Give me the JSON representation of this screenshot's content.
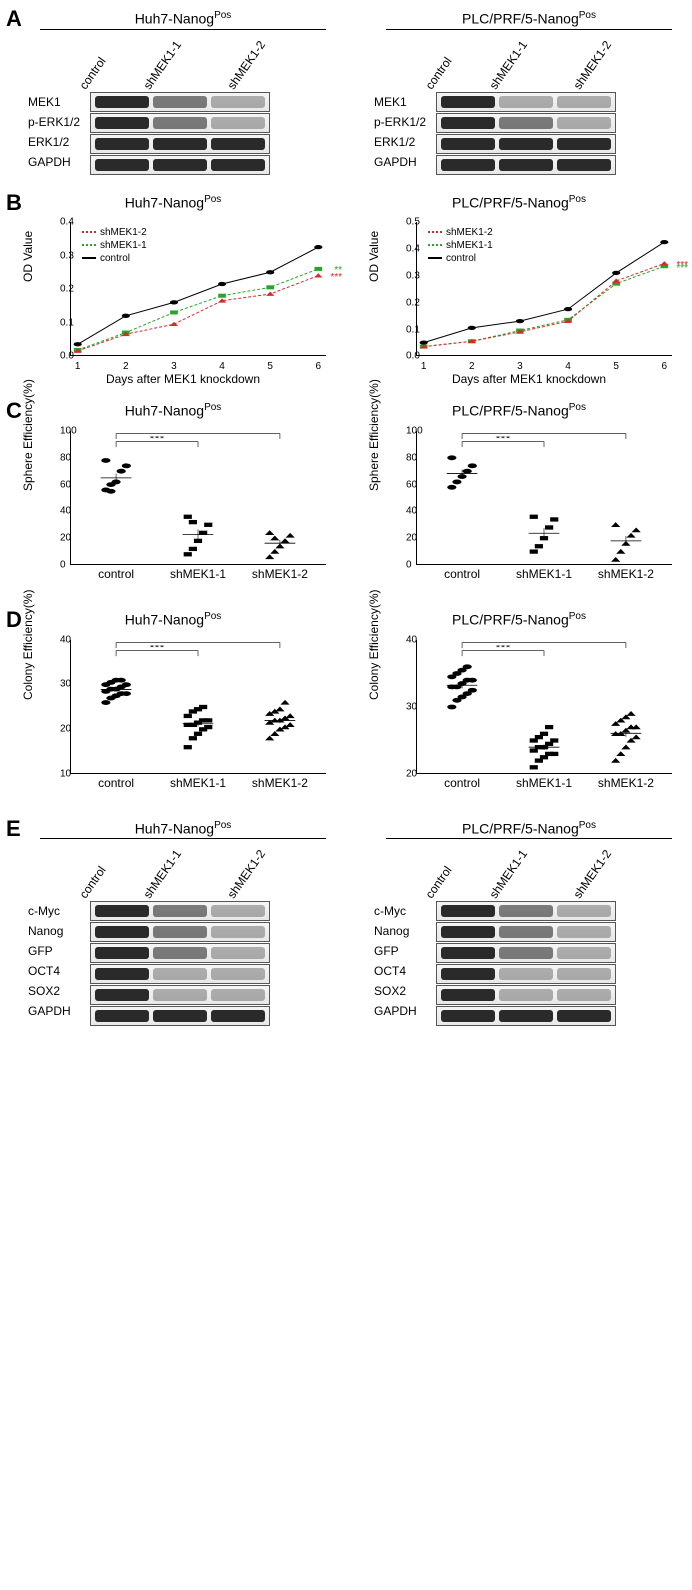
{
  "cellLines": {
    "huh7": "Huh7-Nanog",
    "plc": "PLC/PRF/5-Nanog",
    "sup": "Pos"
  },
  "conditions": [
    "control",
    "shMEK1-1",
    "shMEK1-2"
  ],
  "panelA": {
    "proteins": [
      "MEK1",
      "p-ERK1/2",
      "ERK1/2",
      "GAPDH"
    ],
    "bands_huh7": [
      [
        "strong",
        "med",
        "light"
      ],
      [
        "strong",
        "med",
        "light"
      ],
      [
        "strong",
        "strong",
        "strong"
      ],
      [
        "strong",
        "strong",
        "strong"
      ]
    ],
    "bands_plc": [
      [
        "strong",
        "light",
        "light"
      ],
      [
        "strong",
        "med",
        "light"
      ],
      [
        "strong",
        "strong",
        "strong"
      ],
      [
        "strong",
        "strong",
        "strong"
      ]
    ]
  },
  "panelB": {
    "y_label": "OD Value",
    "x_label": "Days after MEK1 knockdown",
    "legend": [
      {
        "label": "shMEK1-2",
        "color": "#d42a2a",
        "dash": "4,3",
        "marker": "triangle"
      },
      {
        "label": "shMEK1-1",
        "color": "#28a428",
        "dash": "4,3",
        "marker": "square"
      },
      {
        "label": "control",
        "color": "#000000",
        "dash": "",
        "marker": "circle"
      }
    ],
    "x_ticks": [
      1,
      2,
      3,
      4,
      5,
      6
    ],
    "huh7": {
      "ylim": [
        0,
        0.4
      ],
      "yticks": [
        0.0,
        0.1,
        0.2,
        0.3,
        0.4
      ],
      "control": [
        0.035,
        0.12,
        0.16,
        0.215,
        0.25,
        0.325
      ],
      "shMEK1_1": [
        0.018,
        0.07,
        0.13,
        0.18,
        0.205,
        0.26
      ],
      "shMEK1_2": [
        0.015,
        0.065,
        0.095,
        0.165,
        0.185,
        0.24
      ],
      "sig": [
        "**",
        "***"
      ]
    },
    "plc": {
      "ylim": [
        0,
        0.5
      ],
      "yticks": [
        0.0,
        0.1,
        0.2,
        0.3,
        0.4,
        0.5
      ],
      "control": [
        0.05,
        0.105,
        0.13,
        0.175,
        0.31,
        0.425
      ],
      "shMEK1_1": [
        0.035,
        0.055,
        0.095,
        0.135,
        0.27,
        0.335
      ],
      "shMEK1_2": [
        0.035,
        0.055,
        0.09,
        0.13,
        0.28,
        0.345
      ],
      "sig": [
        "***",
        "***"
      ]
    }
  },
  "panelC": {
    "y_label": "Sphere Efficiency(%)",
    "ylim": [
      0,
      100
    ],
    "yticks": [
      0,
      20,
      40,
      60,
      80,
      100
    ],
    "huh7": {
      "control": [
        56,
        60,
        62,
        70,
        74,
        78,
        55
      ],
      "shMEK1_1": [
        8,
        12,
        18,
        24,
        30,
        36,
        32
      ],
      "shMEK1_2": [
        6,
        10,
        14,
        18,
        22,
        24,
        20
      ]
    },
    "plc": {
      "control": [
        58,
        62,
        66,
        70,
        74,
        80
      ],
      "shMEK1_1": [
        10,
        14,
        20,
        28,
        34,
        36
      ],
      "shMEK1_2": [
        4,
        10,
        16,
        22,
        26,
        30
      ]
    },
    "sig": "***"
  },
  "panelD": {
    "y_label": "Colony Efficiency(%)",
    "ylim_huh": [
      10,
      40
    ],
    "yticks_huh": [
      10,
      20,
      30,
      40
    ],
    "ylim_plc": [
      20,
      40
    ],
    "yticks_plc": [
      20,
      30,
      40
    ],
    "huh7": {
      "control": [
        26,
        27,
        27.5,
        28,
        28,
        28.5,
        29,
        29,
        29.5,
        30,
        30,
        30.5,
        31,
        31
      ],
      "shMEK1_1": [
        16,
        18,
        19,
        20,
        20.5,
        21,
        21,
        21.5,
        22,
        22,
        23,
        24,
        24.5,
        25
      ],
      "shMEK1_2": [
        18,
        19,
        20,
        20.5,
        21,
        21.5,
        22,
        22,
        22.5,
        23,
        23.5,
        24,
        24.5,
        26
      ]
    },
    "plc": {
      "control": [
        30,
        31,
        31.5,
        32,
        32.5,
        33,
        33,
        33.5,
        34,
        34,
        34.5,
        35,
        35.5,
        36
      ],
      "shMEK1_1": [
        21,
        22,
        22.5,
        23,
        23,
        23.5,
        24,
        24,
        24.5,
        25,
        25,
        25.5,
        26,
        27
      ],
      "shMEK1_2": [
        22,
        23,
        24,
        25,
        25.5,
        26,
        26,
        26.5,
        27,
        27,
        27.5,
        28,
        28.5,
        29
      ]
    },
    "sig": "***"
  },
  "panelE": {
    "proteins": [
      "c-Myc",
      "Nanog",
      "GFP",
      "OCT4",
      "SOX2",
      "GAPDH"
    ],
    "bands_huh7": [
      [
        "strong",
        "med",
        "light"
      ],
      [
        "strong",
        "med",
        "light"
      ],
      [
        "strong",
        "med",
        "light"
      ],
      [
        "strong",
        "light",
        "light"
      ],
      [
        "strong",
        "light",
        "light"
      ],
      [
        "strong",
        "strong",
        "strong"
      ]
    ],
    "bands_plc": [
      [
        "strong",
        "med",
        "light"
      ],
      [
        "strong",
        "med",
        "light"
      ],
      [
        "strong",
        "med",
        "light"
      ],
      [
        "strong",
        "light",
        "light"
      ],
      [
        "strong",
        "light",
        "light"
      ],
      [
        "strong",
        "strong",
        "strong"
      ]
    ]
  },
  "colors": {
    "black": "#000000",
    "red": "#d42a2a",
    "green": "#28a428"
  }
}
